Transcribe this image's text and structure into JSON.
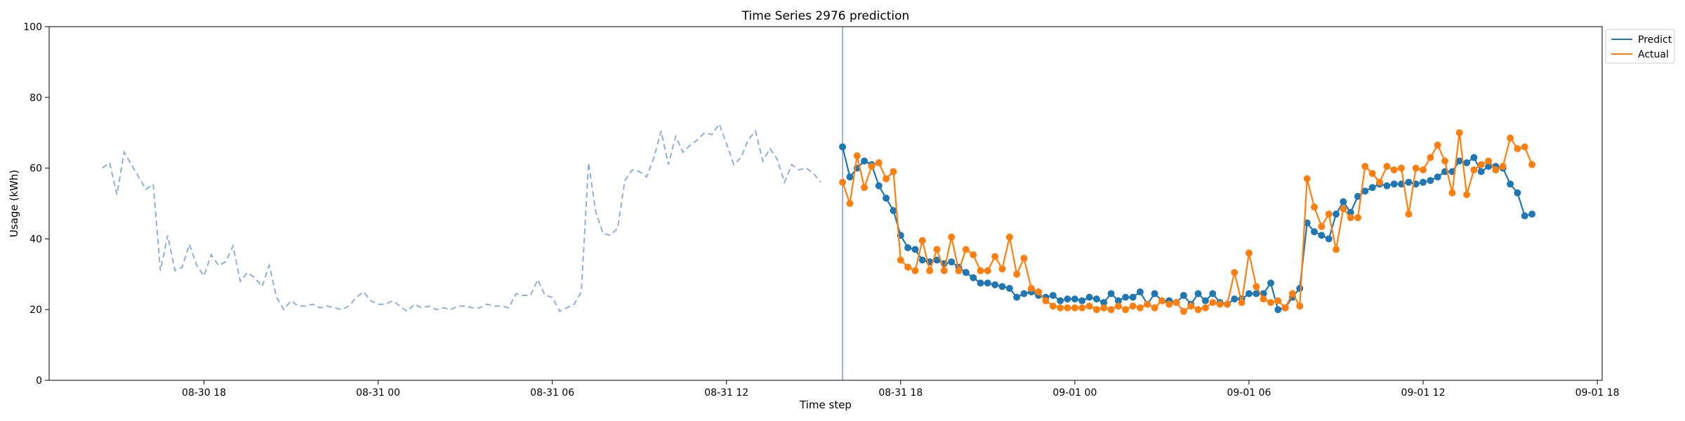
{
  "chart_data": {
    "type": "line",
    "title": "Time Series 2976 prediction",
    "xlabel": "Time step",
    "ylabel": "Usage (kWh)",
    "ylim": [
      0,
      100
    ],
    "xlim": [
      "2024-08-30 12:40",
      "2024-09-01 18:10"
    ],
    "y_ticks": [
      0,
      20,
      40,
      60,
      80,
      100
    ],
    "x_ticks": [
      {
        "t": "2024-08-30 18:00",
        "label": "08-30 18"
      },
      {
        "t": "2024-08-31 00:00",
        "label": "08-31 00"
      },
      {
        "t": "2024-08-31 06:00",
        "label": "08-31 06"
      },
      {
        "t": "2024-08-31 12:00",
        "label": "08-31 12"
      },
      {
        "t": "2024-08-31 18:00",
        "label": "08-31 18"
      },
      {
        "t": "2024-09-01 00:00",
        "label": "09-01 00"
      },
      {
        "t": "2024-09-01 06:00",
        "label": "09-01 06"
      },
      {
        "t": "2024-09-01 12:00",
        "label": "09-01 12"
      },
      {
        "t": "2024-09-01 18:00",
        "label": "09-01 18"
      }
    ],
    "split_time": "2024-08-31 16:00",
    "grid": false,
    "legend_position": "top-right",
    "history": {
      "start": "2024-08-30 14:30",
      "step_minutes": 15,
      "values": [
        60.0,
        61.5,
        52.5,
        64.5,
        61.0,
        57.5,
        54.0,
        55.5,
        31.0,
        41.0,
        31.0,
        32.0,
        38.5,
        32.5,
        29.5,
        35.5,
        32.5,
        33.5,
        38.0,
        28.0,
        30.5,
        29.0,
        26.5,
        32.5,
        23.5,
        20.0,
        22.5,
        21.0,
        21.0,
        21.5,
        20.5,
        21.0,
        20.5,
        20.0,
        21.0,
        23.5,
        25.0,
        22.5,
        21.5,
        21.5,
        22.5,
        21.0,
        19.5,
        21.5,
        20.5,
        21.0,
        20.0,
        20.5,
        20.0,
        21.0,
        21.0,
        20.5,
        20.5,
        21.5,
        21.0,
        21.0,
        20.5,
        24.5,
        24.0,
        24.0,
        28.5,
        24.0,
        23.5,
        19.5,
        20.5,
        21.5,
        25.0,
        61.5,
        47.5,
        41.5,
        41.0,
        43.0,
        56.5,
        59.5,
        59.0,
        57.5,
        63.0,
        70.5,
        61.0,
        69.0,
        64.5,
        66.5,
        68.0,
        70.0,
        69.5,
        72.5,
        67.0,
        61.0,
        63.0,
        68.0,
        70.5,
        62.0,
        65.5,
        62.5,
        56.0,
        61.0,
        59.5,
        60.0,
        58.5,
        56.0
      ]
    },
    "series": [
      {
        "name": "Predict",
        "color": "#1f77b4",
        "start": "2024-08-31 16:00",
        "step_minutes": 15,
        "values": [
          66.0,
          57.5,
          60.0,
          62.0,
          61.0,
          55.0,
          51.5,
          48.0,
          41.0,
          37.5,
          37.0,
          34.0,
          33.5,
          34.0,
          33.0,
          33.5,
          32.0,
          30.5,
          29.0,
          27.5,
          27.5,
          27.0,
          26.5,
          26.0,
          23.5,
          24.5,
          25.0,
          24.0,
          23.5,
          24.0,
          22.5,
          23.0,
          23.0,
          22.5,
          23.5,
          23.0,
          22.0,
          24.5,
          22.5,
          23.5,
          23.5,
          25.0,
          21.5,
          24.5,
          22.5,
          22.5,
          22.0,
          24.0,
          21.5,
          24.5,
          22.5,
          24.5,
          22.0,
          21.5,
          23.0,
          23.0,
          24.5,
          24.5,
          24.5,
          27.5,
          20.0,
          20.5,
          23.5,
          26.0,
          44.5,
          42.0,
          41.0,
          40.0,
          47.0,
          50.5,
          47.5,
          52.0,
          53.5,
          54.5,
          55.5,
          55.0,
          55.5,
          55.5,
          56.0,
          55.5,
          56.0,
          56.5,
          57.5,
          59.0,
          59.0,
          62.0,
          61.5,
          63.0,
          59.0,
          60.5,
          60.5,
          60.0,
          55.5,
          53.0,
          46.5,
          47.0
        ]
      },
      {
        "name": "Actual",
        "color": "#ff7f0e",
        "start": "2024-08-31 16:00",
        "step_minutes": 15,
        "values": [
          56.0,
          50.0,
          63.5,
          54.5,
          60.5,
          61.5,
          57.0,
          59.0,
          34.0,
          32.0,
          31.0,
          39.5,
          31.0,
          37.0,
          31.0,
          40.5,
          31.0,
          37.0,
          35.5,
          31.0,
          31.0,
          35.0,
          31.5,
          40.5,
          30.0,
          34.5,
          26.0,
          25.0,
          22.5,
          21.0,
          20.5,
          20.5,
          20.5,
          20.5,
          21.0,
          20.0,
          20.5,
          20.0,
          21.0,
          20.0,
          21.0,
          20.5,
          21.5,
          20.5,
          22.5,
          21.5,
          22.0,
          19.5,
          21.0,
          20.0,
          20.5,
          22.0,
          21.5,
          21.5,
          30.5,
          22.0,
          36.0,
          26.5,
          23.0,
          22.0,
          22.5,
          20.5,
          24.5,
          21.0,
          57.0,
          49.0,
          43.5,
          47.0,
          37.0,
          48.5,
          46.0,
          46.0,
          60.5,
          58.5,
          56.0,
          60.5,
          59.5,
          60.0,
          47.0,
          60.0,
          59.5,
          63.0,
          66.5,
          62.0,
          53.0,
          70.0,
          52.5,
          59.5,
          61.0,
          62.0,
          59.5,
          60.5,
          68.5,
          65.5,
          66.0,
          61.0
        ]
      }
    ],
    "history_color": "#8eb0d8"
  }
}
